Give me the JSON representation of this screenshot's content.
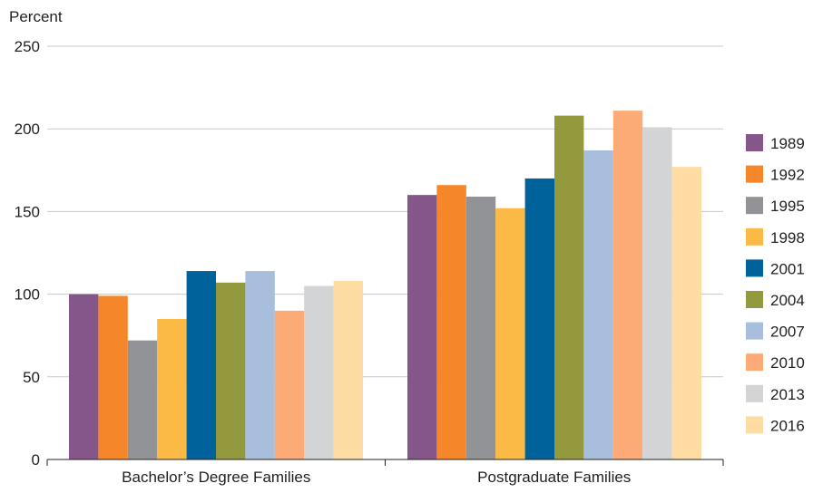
{
  "chart_data": {
    "type": "bar",
    "ylabel": "Percent",
    "xlabel": "",
    "ylim": [
      0,
      250
    ],
    "yticks": [
      0,
      50,
      100,
      150,
      200,
      250
    ],
    "grid": true,
    "legend_position": "right",
    "categories": [
      "Bachelor’s Degree Families",
      "Postgraduate Families"
    ],
    "series": [
      {
        "name": "1989",
        "color": "#84568a",
        "values": [
          100,
          160
        ]
      },
      {
        "name": "1992",
        "color": "#f6862a",
        "values": [
          99,
          166
        ]
      },
      {
        "name": "1995",
        "color": "#929396",
        "values": [
          72,
          159
        ]
      },
      {
        "name": "1998",
        "color": "#fbb946",
        "values": [
          85,
          152
        ]
      },
      {
        "name": "2001",
        "color": "#00629b",
        "values": [
          114,
          170
        ]
      },
      {
        "name": "2004",
        "color": "#939a3e",
        "values": [
          107,
          208
        ]
      },
      {
        "name": "2007",
        "color": "#a7bfdd",
        "values": [
          114,
          187
        ]
      },
      {
        "name": "2010",
        "color": "#fcaa76",
        "values": [
          90,
          211
        ]
      },
      {
        "name": "2013",
        "color": "#d3d4d6",
        "values": [
          105,
          201
        ]
      },
      {
        "name": "2016",
        "color": "#fedca4",
        "values": [
          108,
          177
        ]
      }
    ]
  }
}
